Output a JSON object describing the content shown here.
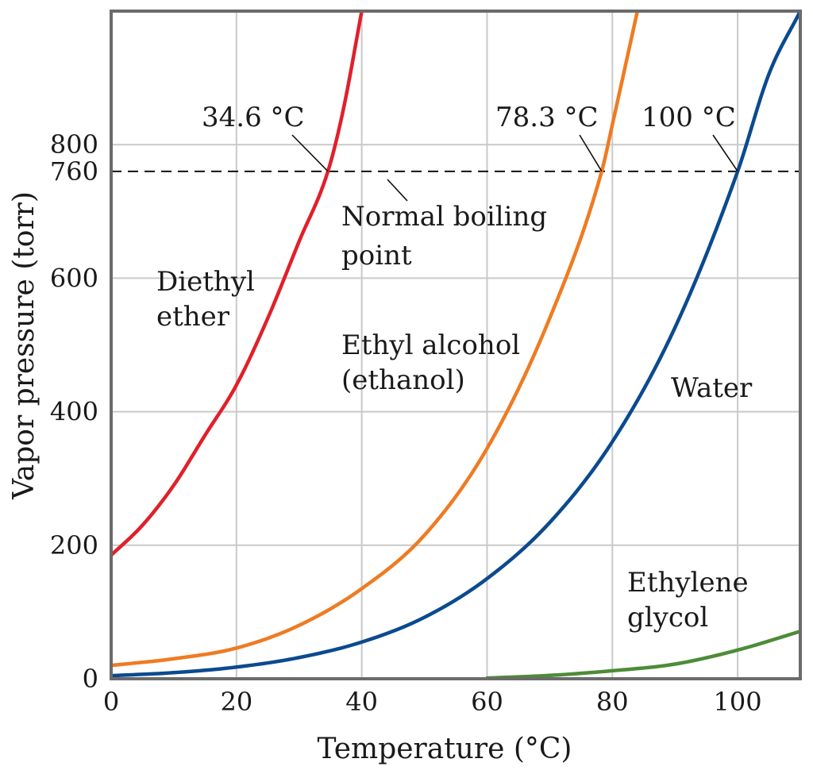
{
  "chart_data": {
    "type": "line",
    "xlabel": "Temperature (°C)",
    "ylabel": "Vapor pressure (torr)",
    "xlim": [
      0,
      110
    ],
    "ylim": [
      0,
      1000
    ],
    "x_ticks": [
      0,
      20,
      40,
      60,
      80,
      100
    ],
    "y_ticks": [
      0,
      200,
      400,
      600,
      760,
      800
    ],
    "grid": true,
    "reference_line": {
      "y": 760,
      "style": "dashed"
    },
    "series": [
      {
        "name": "Diethyl\nether",
        "color": "#e0202a",
        "x": [
          0,
          5,
          10,
          15,
          20,
          25,
          30,
          34.6,
          37,
          40
        ],
        "y": [
          185,
          230,
          290,
          365,
          440,
          540,
          655,
          760,
          850,
          1000
        ]
      },
      {
        "name": "Ethyl alcohol\n(ethanol)",
        "color": "#ef7b22",
        "x": [
          0,
          10,
          20,
          30,
          40,
          50,
          60,
          70,
          78.3,
          80,
          84
        ],
        "y": [
          20,
          30,
          46,
          80,
          135,
          215,
          345,
          540,
          760,
          830,
          1000
        ]
      },
      {
        "name": "Water",
        "color": "#0b4a8e",
        "x": [
          0,
          10,
          20,
          30,
          40,
          50,
          60,
          70,
          80,
          90,
          100,
          105,
          110
        ],
        "y": [
          4.6,
          9.2,
          17.5,
          31.8,
          55,
          92,
          150,
          234,
          355,
          526,
          760,
          906,
          1000
        ]
      },
      {
        "name": "Ethylene\nglycol",
        "color": "#4d8c37",
        "x": [
          60,
          70,
          80,
          90,
          100,
          110
        ],
        "y": [
          1,
          5,
          12,
          22,
          43,
          71
        ]
      }
    ],
    "annotations": [
      {
        "text": "34.6 °C",
        "point": [
          34.6,
          760
        ]
      },
      {
        "text": "78.3 °C",
        "point": [
          78.3,
          760
        ]
      },
      {
        "text": "100 °C",
        "point": [
          100,
          760
        ]
      },
      {
        "text": "Normal boiling\npoint"
      }
    ]
  }
}
